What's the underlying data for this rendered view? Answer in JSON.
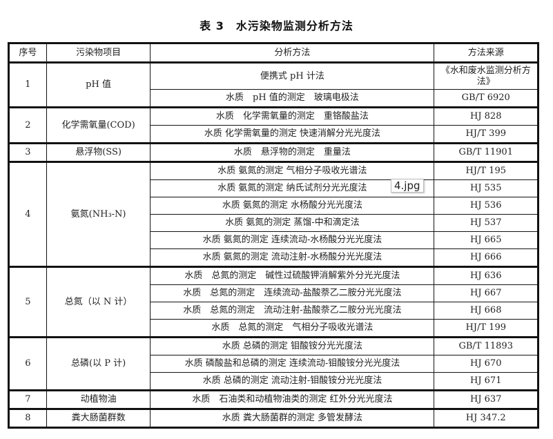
{
  "title": "表 3　水污染物监测分析方法",
  "headers": [
    "序号",
    "污染物项目",
    "分析方法",
    "方法来源"
  ],
  "groups": [
    {
      "no": "1",
      "item": "pH 值",
      "methods": [
        {
          "method": "便携式 pH 计法",
          "source": "《水和废水监测分析方法》"
        },
        {
          "method": "水质　pH 值的测定　玻璃电极法",
          "source": "GB/T 6920"
        }
      ]
    },
    {
      "no": "2",
      "item": "化学需氧量(COD)",
      "methods": [
        {
          "method": "水质　化学需氧量的测定　重铬酸盐法",
          "source": "HJ 828"
        },
        {
          "method": "水质 化学需氧量的测定 快速消解分光光度法",
          "source": "HJ/T 399"
        }
      ]
    },
    {
      "no": "3",
      "item": "悬浮物(SS)",
      "methods": [
        {
          "method": "水质　悬浮物的测定　重量法",
          "source": "GB/T 11901"
        }
      ]
    },
    {
      "no": "4",
      "item": "氨氮(NH₃-N)",
      "methods": [
        {
          "method": "水质 氨氮的测定 气相分子吸收光谱法",
          "source": "HJ/T 195"
        },
        {
          "method": "水质 氨氮的测定 纳氏试剂分光光度法",
          "source": "HJ 535"
        },
        {
          "method": "水质 氨氮的测定 水杨酸分光光度法",
          "source": "HJ 536"
        },
        {
          "method": "水质 氨氮的测定 蒸馏-中和滴定法",
          "source": "HJ 537"
        },
        {
          "method": "水质 氨氮的测定 连续流动-水杨酸分光光度法",
          "source": "HJ 665"
        },
        {
          "method": "水质 氨氮的测定 流动注射-水杨酸分光光度法",
          "source": "HJ 666"
        }
      ]
    },
    {
      "no": "5",
      "item": "总氮（以 N 计）",
      "methods": [
        {
          "method": "水质　总氮的测定　碱性过硫酸钾消解紫外分光光度法",
          "source": "HJ 636"
        },
        {
          "method": "水质　总氮的测定　连续流动-盐酸萘乙二胺分光光度法",
          "source": "HJ 667"
        },
        {
          "method": "水质　总氮的测定　流动注射-盐酸萘乙二胺分光光度法",
          "source": "HJ 668"
        },
        {
          "method": "水质　总氮的测定　气相分子吸收光谱法",
          "source": "HJ/T 199"
        }
      ]
    },
    {
      "no": "6",
      "item": "总磷(以 P 计)",
      "methods": [
        {
          "method": "水质 总磷的测定 钼酸铵分光光度法",
          "source": "GB/T 11893"
        },
        {
          "method": "水质 磷酸盐和总磷的测定 连续流动-钼酸铵分光光度法",
          "source": "HJ 670"
        },
        {
          "method": "水质 总磷的测定 流动注射-钼酸铵分光光度法",
          "source": "HJ 671"
        }
      ]
    },
    {
      "no": "7",
      "item": "动植物油",
      "methods": [
        {
          "method": "水质　石油类和动植物油类的测定 红外分光光度法",
          "source": "HJ 637"
        }
      ]
    },
    {
      "no": "8",
      "item": "粪大肠菌群数",
      "methods": [
        {
          "method": "水质 粪大肠菌群的测定 多管发酵法",
          "source": "HJ 347.2"
        }
      ]
    }
  ],
  "tooltip": "4.jpg"
}
